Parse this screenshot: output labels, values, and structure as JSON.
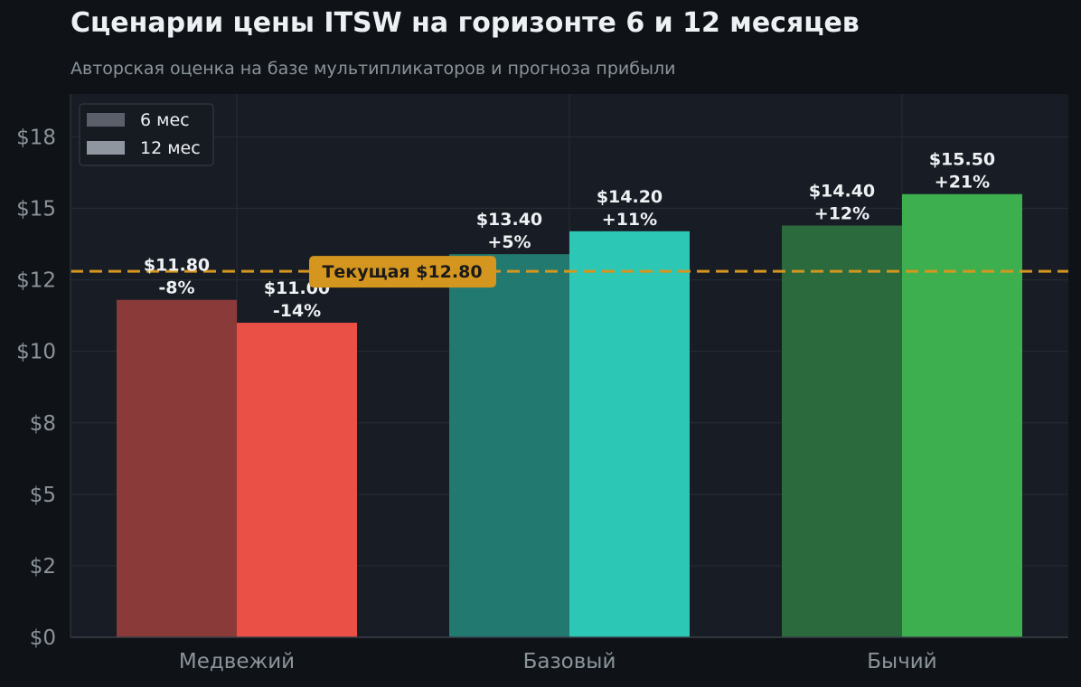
{
  "header": {
    "title": "Сценарии цены ITSW на горизонте 6 и 12 месяцев",
    "subtitle": "Авторская оценка на базе мультипликаторов и прогноза прибыли"
  },
  "colors": {
    "background": "#0f1317",
    "plot_background": "#181c24",
    "grid": "#252a33",
    "reference_line": "#d4961f",
    "bear_6m": "#8b3a3a",
    "bear_12m": "#eb5047",
    "base_6m": "#227970",
    "base_12m": "#2dc7b6",
    "bull_6m": "#2b6a3d",
    "bull_12m": "#3daf4e",
    "legend_6m": "#5a5f6a",
    "legend_12m": "#8f96a0"
  },
  "chart_data": {
    "type": "bar",
    "title": "Сценарии цены ITSW на горизонте 6 и 12 месяцев",
    "subtitle": "Авторская оценка на базе мультипликаторов и прогноза прибыли",
    "categories": [
      "Медвежий",
      "Базовый",
      "Бычий"
    ],
    "series": [
      {
        "name": "6 мес",
        "values": [
          11.8,
          13.4,
          14.4
        ],
        "labels": [
          "$11.80",
          "$13.40",
          "$14.40"
        ],
        "changes": [
          "-8%",
          "+5%",
          "+12%"
        ]
      },
      {
        "name": "12 мес",
        "values": [
          11.0,
          14.2,
          15.5
        ],
        "labels": [
          "$11.00",
          "$14.20",
          "$15.50"
        ],
        "changes": [
          "-14%",
          "+11%",
          "+21%"
        ]
      }
    ],
    "reference_line": {
      "value": 12.8,
      "label": "Текущая $12.80"
    },
    "yticks": [
      0,
      2.5,
      5,
      7.5,
      10,
      12.5,
      15,
      17.5
    ],
    "ytick_labels": [
      "$0",
      "$2",
      "$5",
      "$8",
      "$10",
      "$12",
      "$15",
      "$18"
    ],
    "ylim": [
      0,
      19
    ],
    "xlabel": "",
    "ylabel": "",
    "grid": true,
    "legend": "top-left"
  }
}
